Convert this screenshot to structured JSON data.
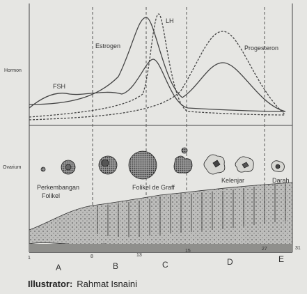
{
  "axis_labels": {
    "hormone": "Hormon",
    "ovary": "Ovarium"
  },
  "hormones": {
    "fsh": "FSH",
    "estrogen": "Estrogen",
    "lh": "LH",
    "progesterone": "Progesteron"
  },
  "ovary_labels": {
    "development": [
      "Perkembangan",
      "Folikel"
    ],
    "graafian": "Folikel de Graff",
    "gland": "Kelenjar",
    "blood": "Darah"
  },
  "days": [
    1,
    8,
    13,
    15,
    27,
    31
  ],
  "phases": [
    "A",
    "B",
    "C",
    "D",
    "E"
  ],
  "credit": {
    "role": "Illustrator:",
    "name": "Rahmat Isnaini"
  }
}
